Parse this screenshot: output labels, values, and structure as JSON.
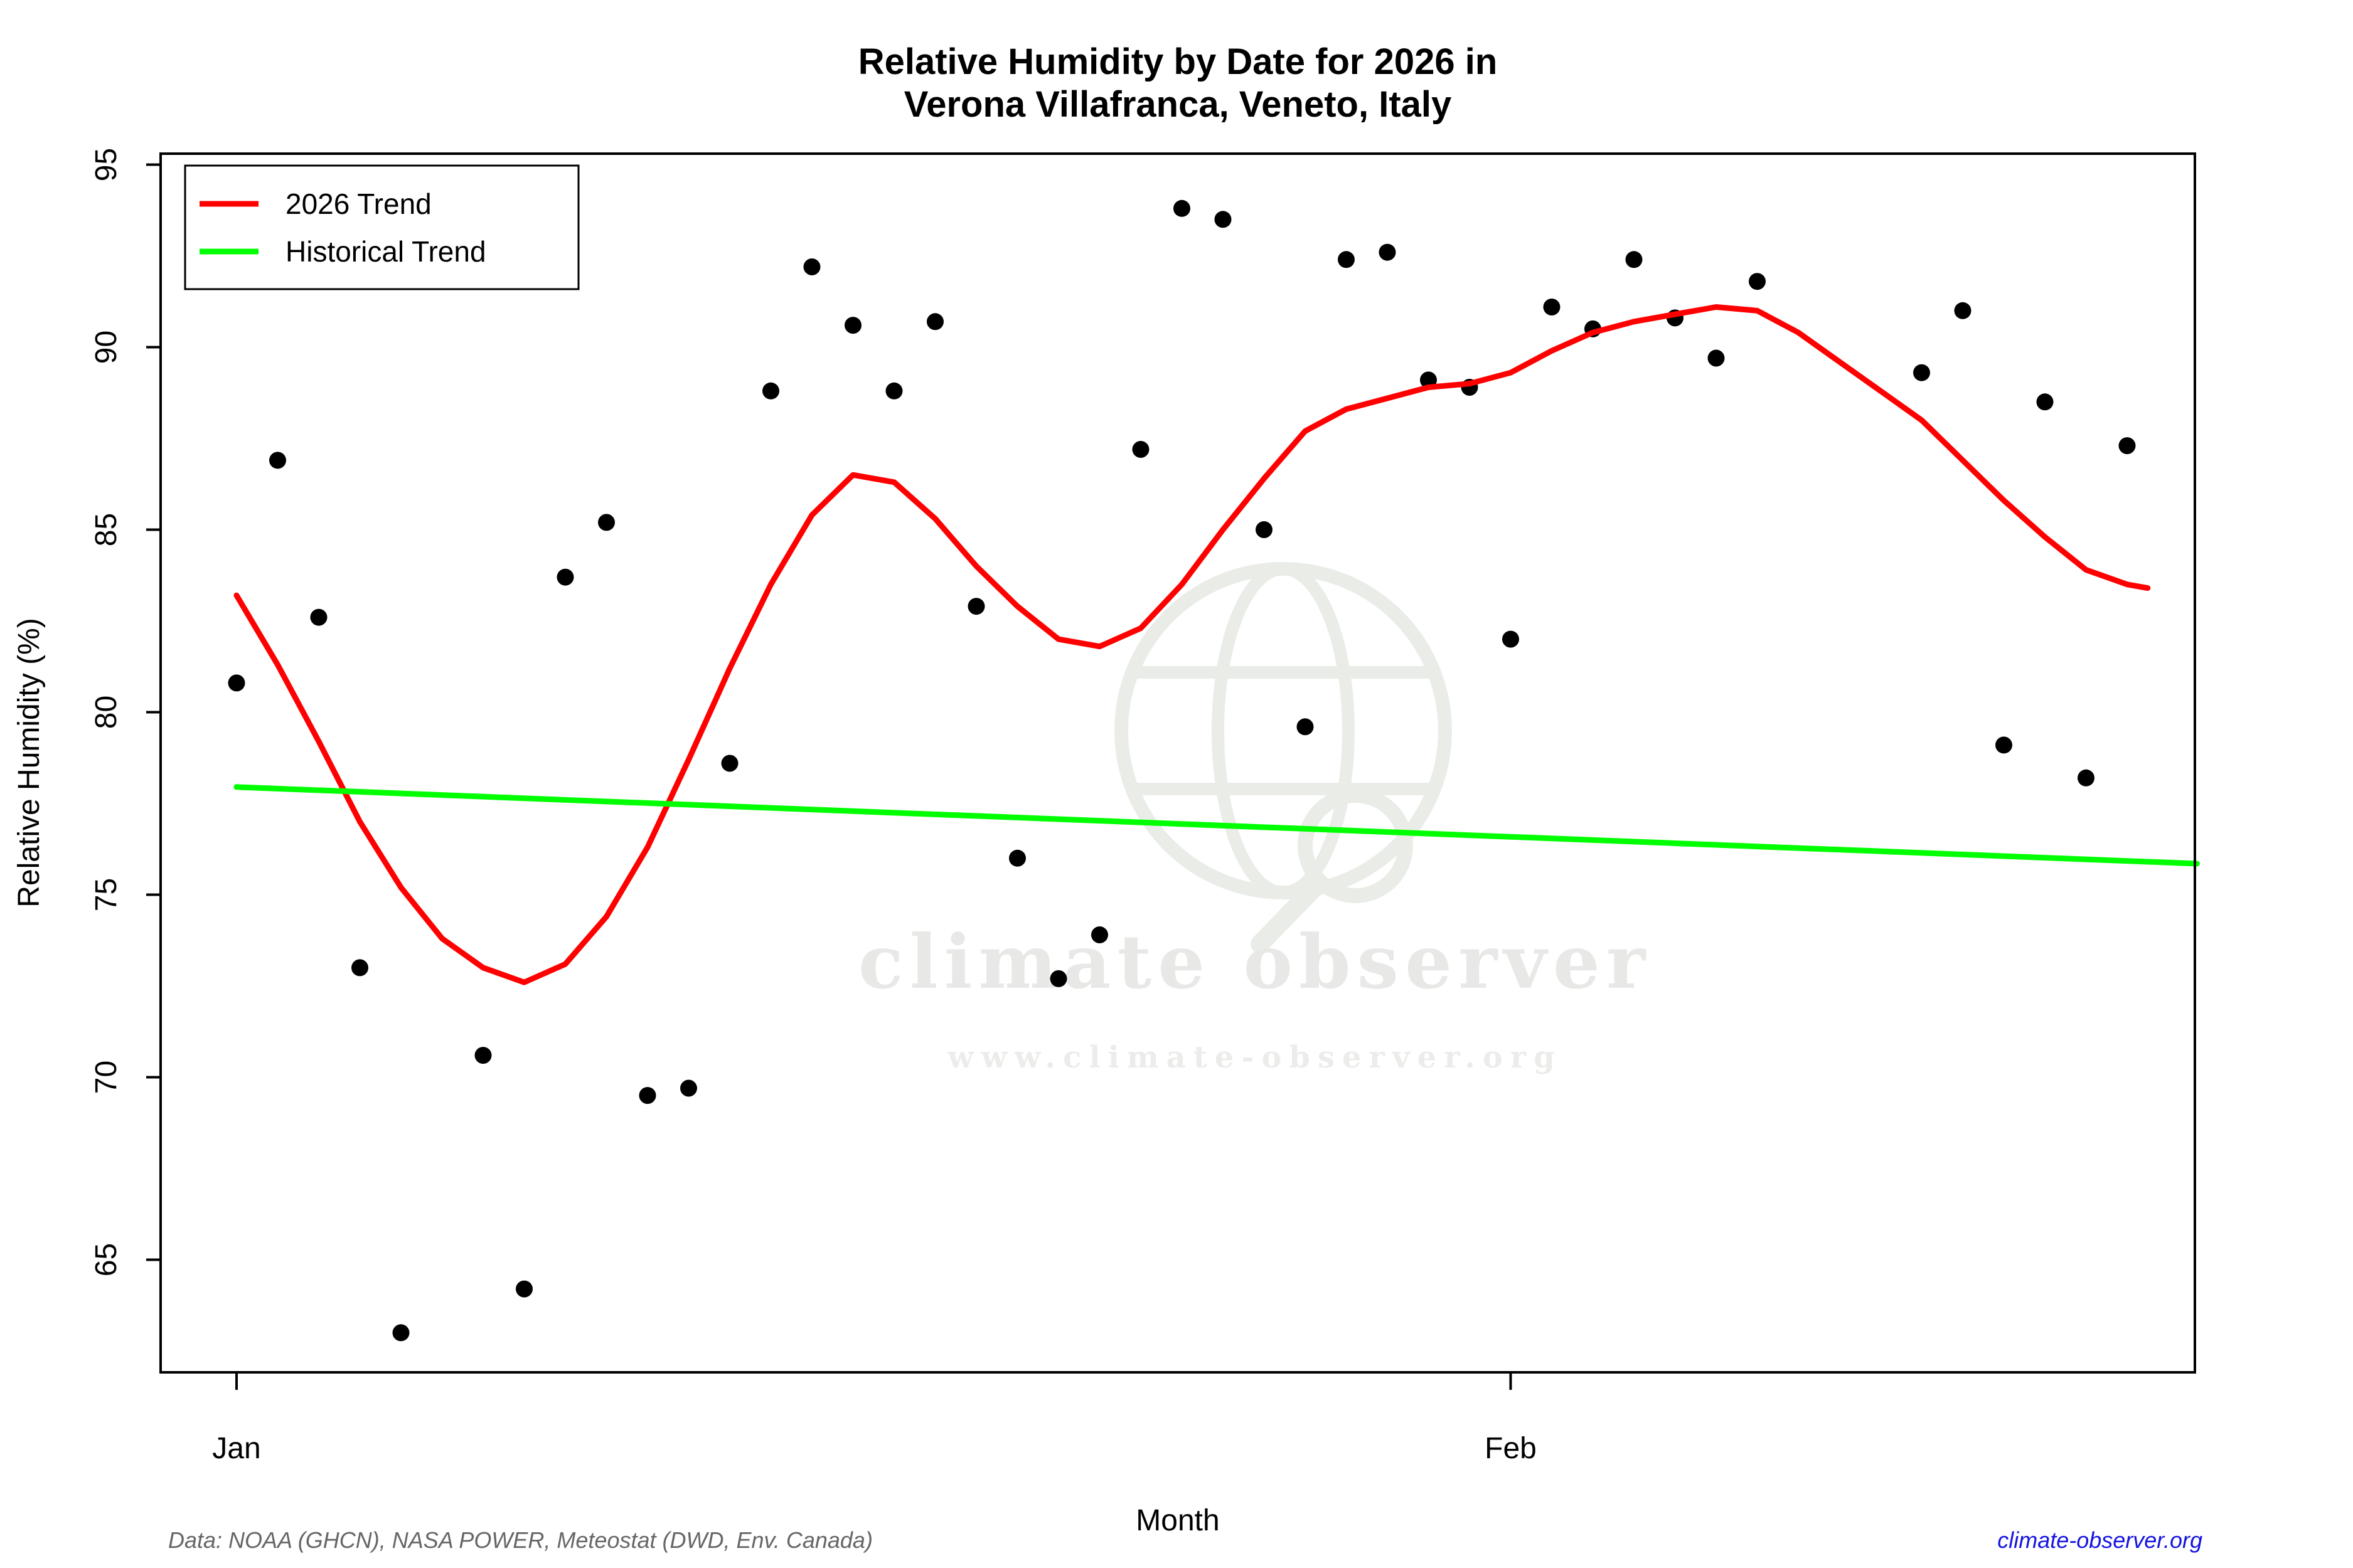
{
  "title": {
    "line1": "Relative Humidity by Date for 2026 in",
    "line2": "Verona Villafranca, Veneto, Italy"
  },
  "legend": {
    "entries": [
      {
        "label": "2026 Trend",
        "color": "#ff0000"
      },
      {
        "label": "Historical Trend",
        "color": "#00ff00"
      }
    ]
  },
  "footer": {
    "source_note": "Data: NOAA (GHCN), NASA POWER, Meteostat (DWD, Env. Canada)",
    "link": "climate-observer.org"
  },
  "watermark": {
    "text": "climate observer",
    "url": "www.climate-observer.org",
    "icon": "globe-magnifier-icon"
  },
  "colors": {
    "trend_2026": "#ff0000",
    "trend_historical": "#00ff00",
    "points": "#000000",
    "link": "#1414e0",
    "note": "#666666"
  },
  "chart_data": {
    "type": "scatter",
    "title": "Relative Humidity by Date for 2026 in Verona Villafranca, Veneto, Italy",
    "xlabel": "Month",
    "ylabel": "Relative Humidity (%)",
    "x_ticks": [
      {
        "label": "Jan",
        "day": 1
      },
      {
        "label": "Feb",
        "day": 32
      }
    ],
    "y_ticks": [
      95,
      90,
      85,
      80,
      75,
      70,
      65
    ],
    "ylim": [
      61.9,
      95.3
    ],
    "xlim_days": [
      -0.85,
      48.7
    ],
    "grid": false,
    "legend_position": "top-left",
    "points_day_value": [
      [
        1,
        80.8
      ],
      [
        2,
        86.9
      ],
      [
        3,
        82.6
      ],
      [
        4,
        73.0
      ],
      [
        5,
        63.0
      ],
      [
        7,
        70.6
      ],
      [
        8,
        64.2
      ],
      [
        9,
        83.7
      ],
      [
        10,
        85.2
      ],
      [
        11,
        69.5
      ],
      [
        12,
        69.7
      ],
      [
        13,
        78.6
      ],
      [
        14,
        88.8
      ],
      [
        15,
        92.2
      ],
      [
        16,
        90.6
      ],
      [
        17,
        88.8
      ],
      [
        18,
        90.7
      ],
      [
        19,
        82.9
      ],
      [
        20,
        76.0
      ],
      [
        21,
        72.7
      ],
      [
        22,
        73.9
      ],
      [
        23,
        87.2
      ],
      [
        24,
        93.8
      ],
      [
        25,
        93.5
      ],
      [
        26,
        85.0
      ],
      [
        27,
        79.6
      ],
      [
        28,
        92.4
      ],
      [
        29,
        92.6
      ],
      [
        30,
        89.1
      ],
      [
        31,
        88.9
      ],
      [
        32,
        82.0
      ],
      [
        33,
        91.1
      ],
      [
        34,
        90.5
      ],
      [
        35,
        92.4
      ],
      [
        36,
        90.8
      ],
      [
        37,
        89.7
      ],
      [
        38,
        91.8
      ],
      [
        42,
        89.3
      ],
      [
        43,
        91.0
      ],
      [
        44,
        79.1
      ],
      [
        45,
        88.5
      ],
      [
        46,
        78.2
      ],
      [
        47,
        87.3
      ]
    ],
    "series": [
      {
        "name": "2026 Trend",
        "color": "#ff0000",
        "points": [
          [
            1,
            83.2
          ],
          [
            2,
            81.3
          ],
          [
            3,
            79.2
          ],
          [
            4,
            77.0
          ],
          [
            5,
            75.2
          ],
          [
            6,
            73.8
          ],
          [
            7,
            73.0
          ],
          [
            8,
            72.6
          ],
          [
            9,
            73.1
          ],
          [
            10,
            74.4
          ],
          [
            11,
            76.3
          ],
          [
            12,
            78.7
          ],
          [
            13,
            81.2
          ],
          [
            14,
            83.5
          ],
          [
            15,
            85.4
          ],
          [
            16,
            86.5
          ],
          [
            17,
            86.3
          ],
          [
            18,
            85.3
          ],
          [
            19,
            84.0
          ],
          [
            20,
            82.9
          ],
          [
            21,
            82.0
          ],
          [
            22,
            81.8
          ],
          [
            23,
            82.3
          ],
          [
            24,
            83.5
          ],
          [
            25,
            85.0
          ],
          [
            26,
            86.4
          ],
          [
            27,
            87.7
          ],
          [
            28,
            88.3
          ],
          [
            29,
            88.6
          ],
          [
            30,
            88.9
          ],
          [
            31,
            89.0
          ],
          [
            32,
            89.3
          ],
          [
            33,
            89.9
          ],
          [
            34,
            90.4
          ],
          [
            35,
            90.7
          ],
          [
            36,
            90.9
          ],
          [
            37,
            91.1
          ],
          [
            38,
            91.0
          ],
          [
            39,
            90.4
          ],
          [
            40,
            89.6
          ],
          [
            41,
            88.8
          ],
          [
            42,
            88.0
          ],
          [
            43,
            86.9
          ],
          [
            44,
            85.8
          ],
          [
            45,
            84.8
          ],
          [
            46,
            83.9
          ],
          [
            47,
            83.5
          ],
          [
            47.5,
            83.4
          ]
        ]
      },
      {
        "name": "Historical Trend",
        "color": "#00ff00",
        "points": [
          [
            1,
            77.95
          ],
          [
            48.7,
            75.85
          ]
        ]
      }
    ]
  }
}
